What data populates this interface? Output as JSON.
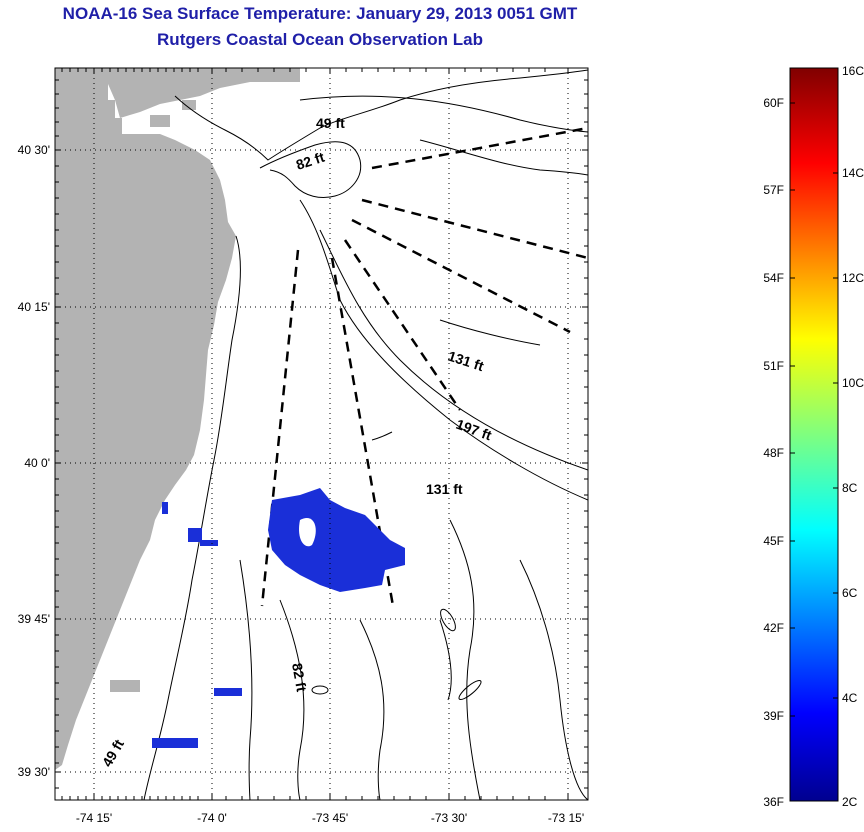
{
  "header": {
    "title": "NOAA-16 Sea Surface Temperature:  January 29, 2013 0051 GMT",
    "subtitle": "Rutgers Coastal Ocean Observation Lab"
  },
  "map": {
    "lat_labels": [
      "40 30'",
      "40 15'",
      "40 0'",
      "39 45'",
      "39 30'"
    ],
    "lon_labels": [
      "-74 15'",
      "-74 0'",
      "-73 45'",
      "-73 30'",
      "-73 15'"
    ],
    "depth_labels": [
      "49 ft",
      "82 ft",
      "131 ft",
      "197 ft",
      "131 ft",
      "82 ft",
      "49 ft"
    ]
  },
  "colorbar": {
    "left_labels": [
      "60F",
      "57F",
      "54F",
      "51F",
      "48F",
      "45F",
      "42F",
      "39F",
      "36F"
    ],
    "right_labels": [
      "16C",
      "14C",
      "12C",
      "10C",
      "8C",
      "6C",
      "4C",
      "2C"
    ]
  },
  "colors": {
    "land": "#b3b3b3",
    "title": "#1f1fa8",
    "cold_water": "#1a2fd8"
  }
}
